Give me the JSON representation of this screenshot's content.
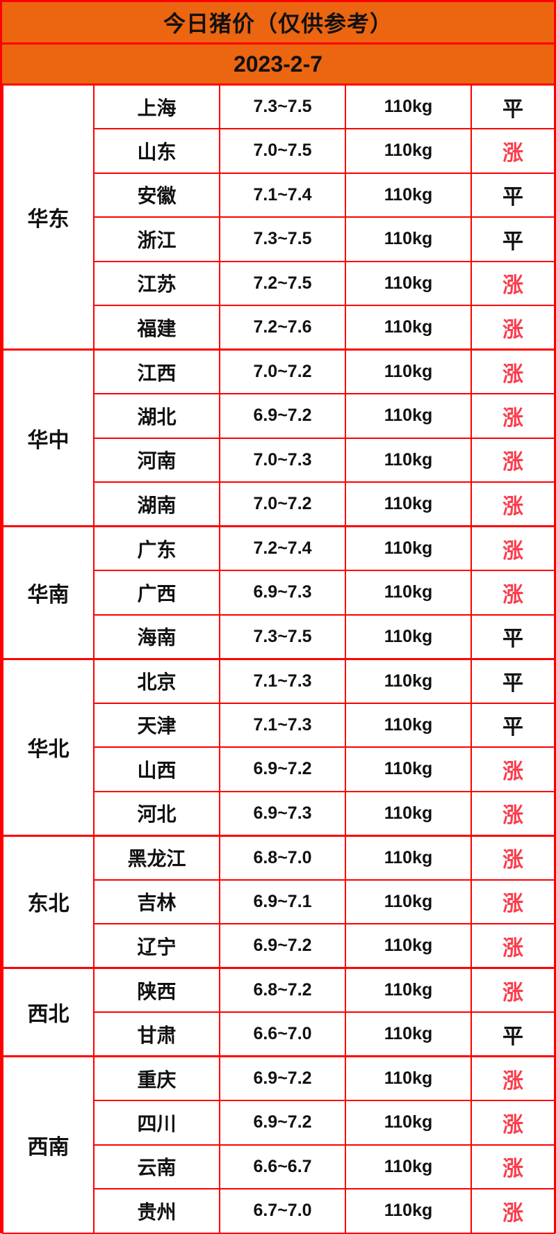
{
  "header": {
    "title": "今日猪价（仅供参考）",
    "date": "2023-2-7"
  },
  "colors": {
    "header_bg": "#ec6511",
    "border": "#fe0000",
    "status_up": "#fa3e4e",
    "text": "#111111"
  },
  "status_legend": {
    "up": "涨",
    "flat": "平"
  },
  "table": {
    "groups": [
      {
        "region": "华东",
        "rows": [
          {
            "province": "上海",
            "price": "7.3~7.5",
            "weight": "110kg",
            "status": "平"
          },
          {
            "province": "山东",
            "price": "7.0~7.5",
            "weight": "110kg",
            "status": "涨"
          },
          {
            "province": "安徽",
            "price": "7.1~7.4",
            "weight": "110kg",
            "status": "平"
          },
          {
            "province": "浙江",
            "price": "7.3~7.5",
            "weight": "110kg",
            "status": "平"
          },
          {
            "province": "江苏",
            "price": "7.2~7.5",
            "weight": "110kg",
            "status": "涨"
          },
          {
            "province": "福建",
            "price": "7.2~7.6",
            "weight": "110kg",
            "status": "涨"
          }
        ]
      },
      {
        "region": "华中",
        "rows": [
          {
            "province": "江西",
            "price": "7.0~7.2",
            "weight": "110kg",
            "status": "涨"
          },
          {
            "province": "湖北",
            "price": "6.9~7.2",
            "weight": "110kg",
            "status": "涨"
          },
          {
            "province": "河南",
            "price": "7.0~7.3",
            "weight": "110kg",
            "status": "涨"
          },
          {
            "province": "湖南",
            "price": "7.0~7.2",
            "weight": "110kg",
            "status": "涨"
          }
        ]
      },
      {
        "region": "华南",
        "rows": [
          {
            "province": "广东",
            "price": "7.2~7.4",
            "weight": "110kg",
            "status": "涨"
          },
          {
            "province": "广西",
            "price": "6.9~7.3",
            "weight": "110kg",
            "status": "涨"
          },
          {
            "province": "海南",
            "price": "7.3~7.5",
            "weight": "110kg",
            "status": "平"
          }
        ]
      },
      {
        "region": "华北",
        "rows": [
          {
            "province": "北京",
            "price": "7.1~7.3",
            "weight": "110kg",
            "status": "平"
          },
          {
            "province": "天津",
            "price": "7.1~7.3",
            "weight": "110kg",
            "status": "平"
          },
          {
            "province": "山西",
            "price": "6.9~7.2",
            "weight": "110kg",
            "status": "涨"
          },
          {
            "province": "河北",
            "price": "6.9~7.3",
            "weight": "110kg",
            "status": "涨"
          }
        ]
      },
      {
        "region": "东北",
        "rows": [
          {
            "province": "黑龙江",
            "price": "6.8~7.0",
            "weight": "110kg",
            "status": "涨"
          },
          {
            "province": "吉林",
            "price": "6.9~7.1",
            "weight": "110kg",
            "status": "涨"
          },
          {
            "province": "辽宁",
            "price": "6.9~7.2",
            "weight": "110kg",
            "status": "涨"
          }
        ]
      },
      {
        "region": "西北",
        "rows": [
          {
            "province": "陕西",
            "price": "6.8~7.2",
            "weight": "110kg",
            "status": "涨"
          },
          {
            "province": "甘肃",
            "price": "6.6~7.0",
            "weight": "110kg",
            "status": "平"
          }
        ]
      },
      {
        "region": "西南",
        "rows": [
          {
            "province": "重庆",
            "price": "6.9~7.2",
            "weight": "110kg",
            "status": "涨"
          },
          {
            "province": "四川",
            "price": "6.9~7.2",
            "weight": "110kg",
            "status": "涨"
          },
          {
            "province": "云南",
            "price": "6.6~6.7",
            "weight": "110kg",
            "status": "涨"
          },
          {
            "province": "贵州",
            "price": "6.7~7.0",
            "weight": "110kg",
            "status": "涨"
          }
        ]
      }
    ]
  }
}
